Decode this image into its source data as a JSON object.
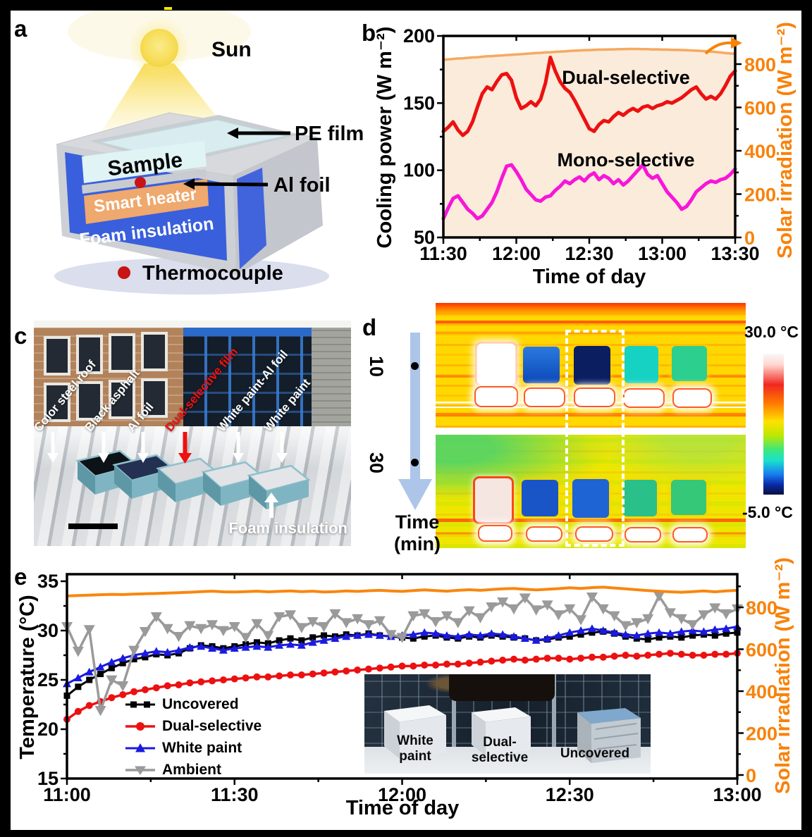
{
  "figure": {
    "panel_labels": {
      "a": "a",
      "b": "b",
      "c": "c",
      "d": "d",
      "e": "e"
    }
  },
  "colors": {
    "orange_axis": "#F8820A",
    "solar_line_b": "#F6A95F",
    "solar_fill_b": "#FBEBDA",
    "solar_line_e": "#F8870F",
    "dual_red": "#EC1111",
    "mono_magenta": "#F716D8",
    "white_paint_blue": "#1A1AE0",
    "uncovered_black": "#000000",
    "ambient_gray": "#9A9A9A",
    "foam_blue": "#3A5FDC",
    "heater_orange": "#EFA86D",
    "sample_cyan": "#E0F3F5",
    "thermocouple_red": "#C81414",
    "time_arrow_blue": "#ADC5E8",
    "foam_teal": "#7FB5C2",
    "label_red": "#F01010"
  },
  "panel_a": {
    "sun_label": "Sun",
    "pe_film": "PE film",
    "sample": "Sample",
    "smart_heater": "Smart heater",
    "al_foil": "Al foil",
    "foam_insulation": "Foam insulation",
    "thermocouple": "Thermocouple"
  },
  "panel_c": {
    "labels": [
      "Color steel roof",
      "Black asphalt",
      "Al foil",
      "Dual-selective film",
      "White paint-Al foil",
      "White paint"
    ],
    "foam_label": "Foam insulation"
  },
  "panel_d": {
    "time_10": "10",
    "time_30": "30",
    "time_label": "Time",
    "time_unit": "(min)",
    "temp_max": "30.0 °C",
    "temp_min": "-5.0 °C"
  },
  "chart_data": [
    {
      "type": "line",
      "panel": "b",
      "xlabel": "Time of day",
      "ylabel_left": "Cooling power (W m⁻²)",
      "ylabel_right": "Solar irradiation (W m⁻²)",
      "x_tick_labels": [
        "11:30",
        "12:00",
        "12:30",
        "13:00",
        "13:30"
      ],
      "x_tick_minutes": [
        0,
        30,
        60,
        90,
        120
      ],
      "x_minor_minutes": [
        15,
        45,
        75,
        105
      ],
      "ylim_left": [
        50,
        200
      ],
      "y_left_ticks": [
        50,
        100,
        150,
        200
      ],
      "y_left_minor": [
        75,
        125,
        175
      ],
      "ylim_right": [
        0,
        930
      ],
      "y_right_ticks": [
        0,
        200,
        400,
        600,
        800
      ],
      "y_right_minor": [
        100,
        300,
        500,
        700,
        900
      ],
      "x_start_min": 0,
      "x_step_min": 2,
      "annotations": {
        "dual": "Dual-selective",
        "mono": "Mono-selective"
      },
      "series": [
        {
          "name": "Solar irradiation",
          "axis": "right",
          "color_key": "solar_line_b",
          "fill_key": "solar_fill_b",
          "width": 3.5,
          "marker": "none",
          "values": [
            820,
            822,
            824,
            826,
            827,
            829,
            831,
            832,
            834,
            836,
            837,
            839,
            840,
            842,
            843,
            845,
            846,
            848,
            849,
            851,
            852,
            854,
            855,
            857,
            858,
            859,
            861,
            862,
            863,
            864,
            865,
            866,
            867,
            867,
            868,
            868,
            869,
            869,
            870,
            870,
            870,
            869,
            869,
            868,
            868,
            867,
            867,
            866,
            866,
            865,
            864,
            863,
            862,
            861,
            860,
            858,
            856,
            854,
            851,
            849,
            848
          ]
        },
        {
          "name": "Dual-selective",
          "axis": "left",
          "color_key": "dual_red",
          "width": 5,
          "marker": "none",
          "values": [
            129,
            132,
            136,
            130,
            126,
            129,
            136,
            147,
            157,
            162,
            160,
            166,
            171,
            172,
            167,
            154,
            146,
            148,
            151,
            148,
            153,
            165,
            184,
            174,
            166,
            161,
            158,
            152,
            145,
            138,
            131,
            129,
            134,
            137,
            136,
            140,
            143,
            141,
            144,
            146,
            144,
            147,
            148,
            146,
            148,
            149,
            151,
            150,
            152,
            154,
            157,
            160,
            162,
            157,
            153,
            155,
            153,
            157,
            163,
            170,
            174
          ]
        },
        {
          "name": "Mono-selective",
          "axis": "left",
          "color_key": "mono_magenta",
          "width": 5,
          "marker": "none",
          "values": [
            64,
            72,
            79,
            81,
            76,
            71,
            68,
            64,
            66,
            71,
            76,
            84,
            94,
            103,
            104,
            99,
            93,
            86,
            82,
            78,
            77,
            80,
            81,
            85,
            88,
            92,
            90,
            93,
            95,
            92,
            96,
            98,
            93,
            96,
            94,
            90,
            93,
            89,
            92,
            96,
            100,
            104,
            97,
            94,
            96,
            90,
            84,
            80,
            76,
            71,
            73,
            78,
            84,
            87,
            90,
            92,
            91,
            93,
            94,
            97,
            101
          ]
        }
      ]
    },
    {
      "type": "line",
      "panel": "e",
      "xlabel": "Time of day",
      "ylabel_left": "Temperature (°C)",
      "ylabel_right": "Solar irradiation (W m⁻²)",
      "x_tick_labels": [
        "11:00",
        "11:30",
        "12:00",
        "12:30",
        "13:00"
      ],
      "x_tick_minutes": [
        0,
        30,
        60,
        90,
        120
      ],
      "x_minor_minutes": [
        15,
        45,
        75,
        105
      ],
      "ylim_left": [
        15,
        35
      ],
      "y_left_ticks": [
        15,
        20,
        25,
        30,
        35
      ],
      "y_left_minor": [
        17.5,
        22.5,
        27.5,
        32.5
      ],
      "ylim_right": [
        0,
        975
      ],
      "y_right_ticks": [
        0,
        200,
        400,
        600,
        800
      ],
      "y_right_minor": [
        100,
        300,
        500,
        700,
        900
      ],
      "x_start_min": 0,
      "x_step_min": 2,
      "legend": [
        {
          "label": "Uncovered",
          "series": "uncovered"
        },
        {
          "label": "Dual-selective",
          "series": "dual"
        },
        {
          "label": "White paint",
          "series": "white_paint"
        },
        {
          "label": "Ambient",
          "series": "ambient"
        }
      ],
      "inset_labels": {
        "white_paint": "White\npaint",
        "dual_selective": "Dual-\nselective",
        "uncovered": "Uncovered"
      },
      "series": [
        {
          "name": "Uncovered",
          "key": "uncovered",
          "axis": "left",
          "color_key": "uncovered_black",
          "width": 3,
          "marker": "square",
          "msize": 4.5,
          "values": [
            23.4,
            24.3,
            25.0,
            25.6,
            26.2,
            26.7,
            27.1,
            27.3,
            27.6,
            27.5,
            27.7,
            28.2,
            28.5,
            28.4,
            28.2,
            28.4,
            28.6,
            28.8,
            28.7,
            29.0,
            29.2,
            29.0,
            29.3,
            29.5,
            29.4,
            29.6,
            29.5,
            29.7,
            29.5,
            29.4,
            29.3,
            29.2,
            29.4,
            29.5,
            29.3,
            29.2,
            29.4,
            29.3,
            29.5,
            29.4,
            29.3,
            29.2,
            29.0,
            29.1,
            29.3,
            29.4,
            29.6,
            29.8,
            29.9,
            29.7,
            29.4,
            29.2,
            29.1,
            29.3,
            29.4,
            29.3,
            29.5,
            29.6,
            29.5,
            29.7,
            29.8
          ]
        },
        {
          "name": "White paint",
          "key": "white_paint",
          "axis": "left",
          "color_key": "white_paint_blue",
          "width": 3,
          "marker": "triup",
          "msize": 6,
          "values": [
            24.6,
            25.2,
            25.8,
            26.3,
            26.8,
            27.2,
            27.5,
            27.7,
            27.9,
            27.8,
            28.0,
            28.3,
            28.4,
            28.2,
            28.0,
            28.2,
            28.3,
            28.4,
            28.3,
            28.5,
            28.6,
            28.5,
            28.8,
            29.0,
            29.2,
            29.4,
            29.5,
            29.6,
            29.5,
            29.4,
            29.5,
            29.6,
            29.8,
            29.7,
            29.5,
            29.4,
            29.6,
            29.5,
            29.7,
            29.6,
            29.4,
            29.2,
            29.0,
            29.2,
            29.5,
            29.8,
            30.0,
            30.2,
            30.0,
            29.8,
            29.6,
            29.5,
            29.7,
            29.8,
            29.7,
            29.9,
            30.0,
            29.9,
            30.1,
            30.2,
            30.4
          ]
        },
        {
          "name": "Dual-selective",
          "key": "dual",
          "axis": "left",
          "color_key": "dual_red",
          "width": 3.5,
          "marker": "circle",
          "msize": 5,
          "values": [
            21.0,
            21.8,
            22.4,
            22.8,
            23.2,
            23.5,
            23.8,
            24.0,
            24.2,
            24.4,
            24.5,
            24.7,
            24.8,
            24.9,
            25.0,
            25.1,
            25.2,
            25.3,
            25.3,
            25.4,
            25.5,
            25.5,
            25.6,
            25.7,
            25.8,
            25.9,
            26.0,
            26.1,
            26.2,
            26.3,
            26.4,
            26.4,
            26.5,
            26.5,
            26.6,
            26.6,
            26.7,
            26.8,
            26.9,
            27.0,
            27.1,
            27.0,
            27.1,
            27.2,
            27.2,
            27.1,
            27.2,
            27.3,
            27.3,
            27.4,
            27.5,
            27.4,
            27.5,
            27.6,
            27.7,
            27.6,
            27.5,
            27.5,
            27.6,
            27.6,
            27.7
          ]
        },
        {
          "name": "Ambient",
          "key": "ambient",
          "axis": "left",
          "color_key": "ambient_gray",
          "width": 3.5,
          "marker": "tridown",
          "msize": 8,
          "values": [
            30.4,
            27.9,
            30.1,
            21.9,
            25.0,
            24.4,
            28.0,
            29.9,
            31.4,
            30.2,
            29.4,
            30.5,
            30.2,
            30.6,
            30.0,
            30.4,
            29.3,
            30.7,
            29.5,
            31.4,
            31.6,
            30.3,
            30.9,
            30.4,
            31.7,
            30.8,
            31.2,
            30.6,
            31.0,
            29.6,
            29.3,
            31.5,
            31.7,
            30.9,
            31.5,
            30.8,
            32.0,
            31.3,
            32.4,
            32.9,
            32.2,
            33.3,
            32.1,
            32.6,
            31.6,
            32.2,
            31.1,
            33.4,
            32.2,
            31.5,
            30.5,
            30.8,
            31.2,
            33.5,
            31.8,
            31.2,
            30.6,
            31.6,
            32.3,
            31.7,
            32.2
          ]
        },
        {
          "name": "Solar irradiation",
          "key": "solar",
          "axis": "right",
          "color_key": "solar_line_e",
          "width": 4,
          "marker": "none",
          "values": [
            854,
            856,
            858,
            860,
            862,
            861,
            863,
            865,
            866,
            868,
            870,
            872,
            875,
            877,
            874,
            873,
            875,
            877,
            874,
            876,
            878,
            875,
            877,
            873,
            875,
            878,
            876,
            879,
            881,
            878,
            876,
            880,
            883,
            880,
            877,
            881,
            884,
            881,
            885,
            888,
            890,
            886,
            883,
            886,
            889,
            893,
            890,
            894,
            896,
            892,
            888,
            884,
            880,
            877,
            874,
            872,
            875,
            878,
            874,
            878,
            881
          ]
        }
      ]
    }
  ]
}
